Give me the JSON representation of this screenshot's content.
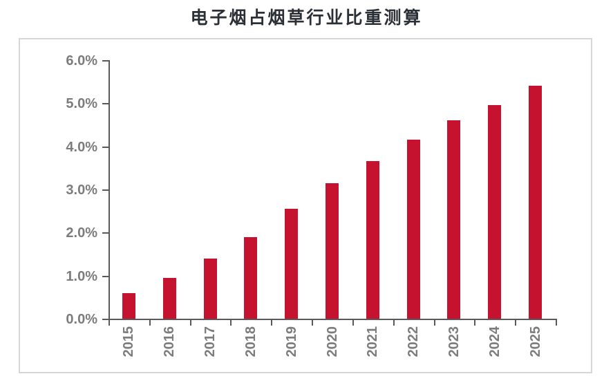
{
  "title": "电子烟占烟草行业比重测算",
  "chart_data": {
    "type": "bar",
    "title": "电子烟占烟草行业比重测算",
    "categories": [
      "2015",
      "2016",
      "2017",
      "2018",
      "2019",
      "2020",
      "2021",
      "2022",
      "2023",
      "2024",
      "2025"
    ],
    "values": [
      0.6,
      0.95,
      1.4,
      1.9,
      2.55,
      3.15,
      3.65,
      4.15,
      4.6,
      4.95,
      5.4
    ],
    "unit": "%",
    "xlabel": "",
    "ylabel": "",
    "ylim": [
      0,
      6
    ],
    "y_tick_step": 1,
    "y_tick_labels": [
      "0.0%",
      "1.0%",
      "2.0%",
      "3.0%",
      "4.0%",
      "5.0%",
      "6.0%"
    ],
    "grid": false,
    "legend_position": "none",
    "bar_color": "#C5122E",
    "axis_color": "#595959",
    "tick_label_color": "#7c7c7c",
    "title_color": "#2b2f36",
    "frame_border_color": "#d6d6d6"
  }
}
